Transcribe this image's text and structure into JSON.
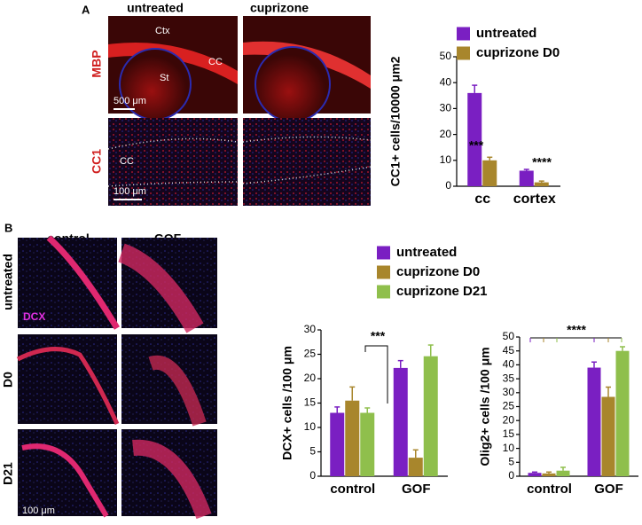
{
  "panels": {
    "a": {
      "label": "A",
      "columns": [
        "untreated",
        "cuprizone"
      ],
      "rows": [
        "MBP",
        "CC1"
      ],
      "annotations": [
        "Ctx",
        "CC",
        "St",
        "500 μm",
        "CC",
        "100 μm"
      ]
    },
    "b": {
      "label": "B",
      "columns": [
        "control",
        "GOF"
      ],
      "rows": [
        "untreated",
        "D0",
        "D21"
      ],
      "stain": "DCX",
      "scale": "100 μm"
    }
  },
  "chart_data": [
    {
      "type": "bar",
      "ylabel": "CC1+ cells/10000 μm2",
      "categories": [
        "cc",
        "cortex"
      ],
      "series": [
        {
          "name": "untreated",
          "color": "#7a1fc2",
          "values": [
            36,
            6
          ],
          "errors": [
            3,
            0.5
          ]
        },
        {
          "name": "cuprizone D0",
          "color": "#a8862c",
          "values": [
            10,
            1.5
          ],
          "errors": [
            1.2,
            0.5
          ]
        }
      ],
      "ylim": [
        0,
        50
      ],
      "yticks": [
        0,
        10,
        20,
        30,
        40,
        50
      ],
      "annotations": [
        "***",
        "****"
      ],
      "legend": true
    },
    {
      "type": "bar",
      "ylabel": "DCX+ cells /100 μm",
      "categories": [
        "control",
        "GOF"
      ],
      "series": [
        {
          "name": "untreated",
          "color": "#7a1fc2",
          "values": [
            13,
            22.2
          ],
          "errors": [
            1.2,
            1.5
          ]
        },
        {
          "name": "cuprizone D0",
          "color": "#a8862c",
          "values": [
            15.5,
            3.8
          ],
          "errors": [
            2.8,
            1.6
          ]
        },
        {
          "name": "cuprizone D21",
          "color": "#8fbf4c",
          "values": [
            13,
            24.6
          ],
          "errors": [
            1,
            2.3
          ]
        }
      ],
      "ylim": [
        0,
        30
      ],
      "yticks": [
        0,
        5,
        10,
        15,
        20,
        25,
        30
      ],
      "annotations": [
        "***"
      ],
      "legend": true
    },
    {
      "type": "bar",
      "ylabel": "Olig2+ cells /100 μm",
      "categories": [
        "control",
        "GOF"
      ],
      "series": [
        {
          "color": "#7a1fc2",
          "values": [
            1.2,
            39
          ],
          "errors": [
            0.3,
            2
          ]
        },
        {
          "color": "#a8862c",
          "values": [
            1,
            28.5
          ],
          "errors": [
            0.5,
            3.5
          ]
        },
        {
          "color": "#8fbf4c",
          "values": [
            2,
            45
          ],
          "errors": [
            1.2,
            1.5
          ]
        }
      ],
      "ylim": [
        0,
        50
      ],
      "yticks": [
        0,
        5,
        10,
        15,
        20,
        25,
        30,
        35,
        40,
        45,
        50
      ],
      "annotations": [
        "****"
      ],
      "legend": false
    }
  ]
}
